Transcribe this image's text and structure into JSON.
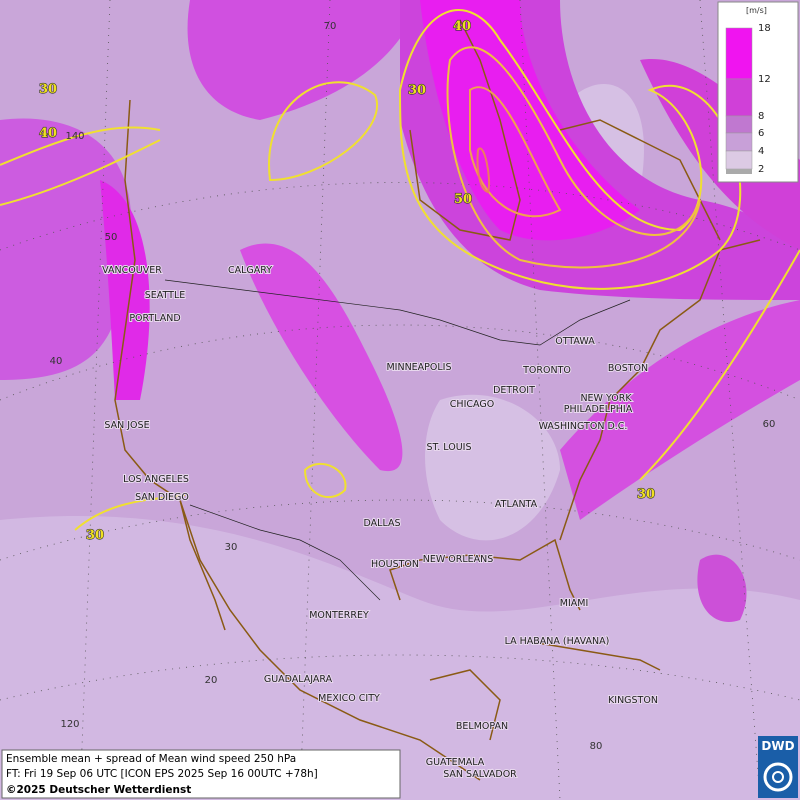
{
  "legend": {
    "unit": "[m/s]",
    "ticks": [
      18,
      12,
      8,
      6,
      4,
      2
    ],
    "colors": [
      "#f014f0",
      "#d040d8",
      "#c078d0",
      "#c8a0d8",
      "#dccae4"
    ]
  },
  "cities": [
    "VANCOUVER",
    "CALGARY",
    "SEATTLE",
    "PORTLAND",
    "SAN JOSE",
    "LOS ANGELES",
    "SAN DIEGO",
    "MINNEAPOLIS",
    "CHICAGO",
    "DETROIT",
    "TORONTO",
    "OTTAWA",
    "BOSTON",
    "NEW YORK",
    "PHILADELPHIA",
    "WASHINGTON D.C.",
    "ST. LOUIS",
    "ATLANTA",
    "DALLAS",
    "HOUSTON",
    "NEW ORLEANS",
    "MIAMI",
    "MONTERREY",
    "LA HABANA (HAVANA)",
    "GUADALAJARA",
    "MEXICO CITY",
    "BELMOPAN",
    "KINGSTON",
    "GUATEMALA",
    "SAN SALVADOR"
  ],
  "contour_labels": [
    30,
    40,
    40,
    30,
    50,
    30,
    30
  ],
  "graticule_labels": [
    70,
    140,
    50,
    40,
    30,
    20,
    120,
    80,
    60
  ],
  "caption": {
    "line1": "Ensemble mean + spread of Mean wind speed 250 hPa",
    "line2": "FT: Fri 19 Sep 06 UTC [ICON EPS 2025 Sep 16 00UTC +78h]",
    "line3": "©2025 Deutscher Wetterdienst"
  },
  "logo": "DWD"
}
